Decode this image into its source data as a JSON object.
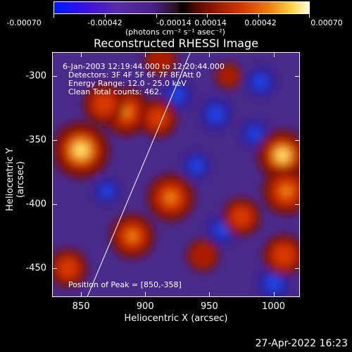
{
  "colorbar": {
    "ticks": [
      "-0.00070",
      "-0.00042",
      "-0.00014",
      "0.00014",
      "0.00042",
      "0.00070"
    ],
    "unit": "(photons cm⁻² s⁻¹ asec⁻²)"
  },
  "annotations": {
    "time": "6-Jan-2003 12:19:44.000 to 12:20:44.000",
    "detectors": "Detectors: 3F 4F 5F 6F 7F 8F/Att 0",
    "energy": "Energy Range: 12.0 - 25.0 keV",
    "clean": "Clean     Total counts: 462.",
    "peak": "Position of Peak = [850,-358]"
  },
  "footer_date": "27-Apr-2022 16:23",
  "chart_data": {
    "type": "heatmap",
    "title": "Reconstructed RHESSI Image",
    "xlabel": "Heliocentric X (arcsec)",
    "ylabel": "Heliocentric Y (arcsec)",
    "xlim": [
      828,
      1020
    ],
    "ylim": [
      -472,
      -282
    ],
    "xticks": [
      850,
      900,
      950,
      1000
    ],
    "yticks": [
      -300,
      -350,
      -400,
      -450
    ],
    "colorbar_range": [
      -0.0007,
      0.0007
    ],
    "colormap": [
      "#0018ff",
      "#5a2aa8",
      "#000000",
      "#d63a00",
      "#ffffe0"
    ],
    "limb_line": [
      [
        855,
        -472
      ],
      [
        935,
        -282
      ]
    ],
    "hotspots": [
      {
        "x": 850,
        "y": -358,
        "value": 0.0007
      },
      {
        "x": 885,
        "y": -328,
        "value": 0.00055
      },
      {
        "x": 868,
        "y": -322,
        "value": 0.00045
      },
      {
        "x": 910,
        "y": -333,
        "value": 0.0004
      },
      {
        "x": 920,
        "y": -395,
        "value": 0.00055
      },
      {
        "x": 890,
        "y": -425,
        "value": 0.0005
      },
      {
        "x": 1007,
        "y": -362,
        "value": 0.0006
      },
      {
        "x": 1010,
        "y": -390,
        "value": 0.00055
      },
      {
        "x": 975,
        "y": -410,
        "value": 0.0004
      },
      {
        "x": 1008,
        "y": -440,
        "value": 0.00045
      },
      {
        "x": 945,
        "y": -440,
        "value": 0.0003
      },
      {
        "x": 840,
        "y": -450,
        "value": 0.0004
      },
      {
        "x": 912,
        "y": -287,
        "value": 0.0003
      },
      {
        "x": 965,
        "y": -300,
        "value": 0.0002
      }
    ],
    "coldspots": [
      {
        "x": 955,
        "y": -330,
        "value": -0.00045
      },
      {
        "x": 925,
        "y": -315,
        "value": -0.0004
      },
      {
        "x": 990,
        "y": -305,
        "value": -0.0004
      },
      {
        "x": 940,
        "y": -370,
        "value": -0.00035
      },
      {
        "x": 960,
        "y": -420,
        "value": -0.0004
      },
      {
        "x": 1000,
        "y": -462,
        "value": -0.00045
      },
      {
        "x": 870,
        "y": -390,
        "value": -0.0003
      },
      {
        "x": 985,
        "y": -345,
        "value": -0.00035
      }
    ]
  }
}
